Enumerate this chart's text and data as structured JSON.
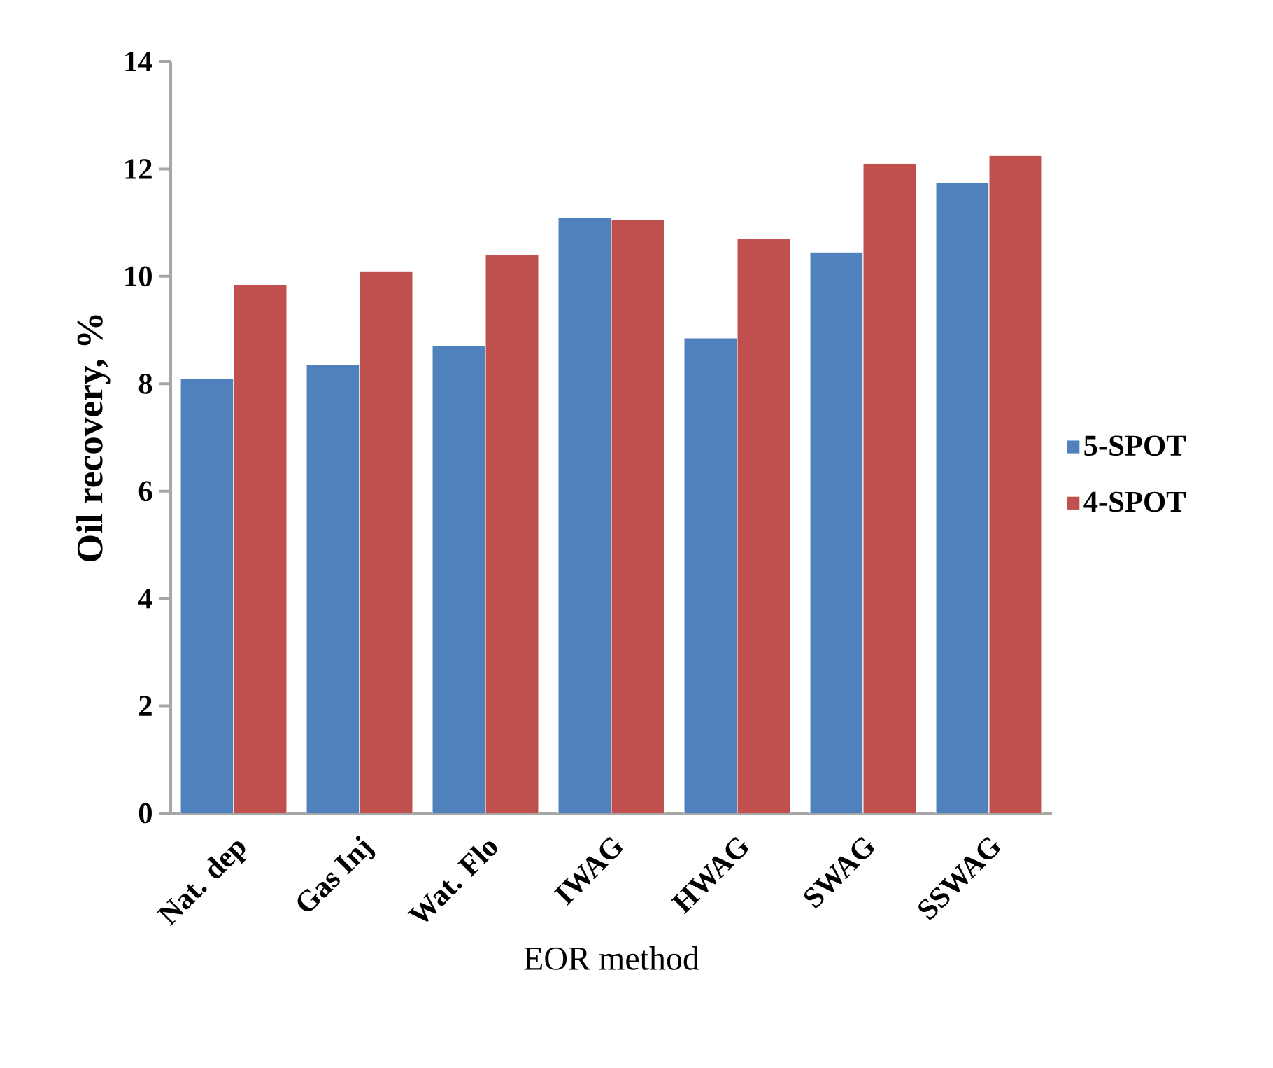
{
  "chart_data": {
    "type": "bar",
    "xlabel": "EOR method",
    "ylabel": "Oil recovery, %",
    "categories": [
      "Nat. dep",
      "Gas Inj",
      "Wat. Flo",
      "IWAG",
      "HWAG",
      "SWAG",
      "SSWAG"
    ],
    "series": [
      {
        "name": "5-SPOT",
        "color": "#4f81bd",
        "values": [
          8.1,
          8.35,
          8.7,
          11.1,
          8.85,
          10.45,
          11.75
        ]
      },
      {
        "name": "4-SPOT",
        "color": "#c0504d",
        "values": [
          9.85,
          10.1,
          10.4,
          11.05,
          10.7,
          12.1,
          12.25
        ]
      }
    ],
    "ylim": [
      0,
      14
    ],
    "yticks": [
      0,
      2,
      4,
      6,
      8,
      10,
      12,
      14
    ],
    "legend": "right",
    "grid": false
  }
}
